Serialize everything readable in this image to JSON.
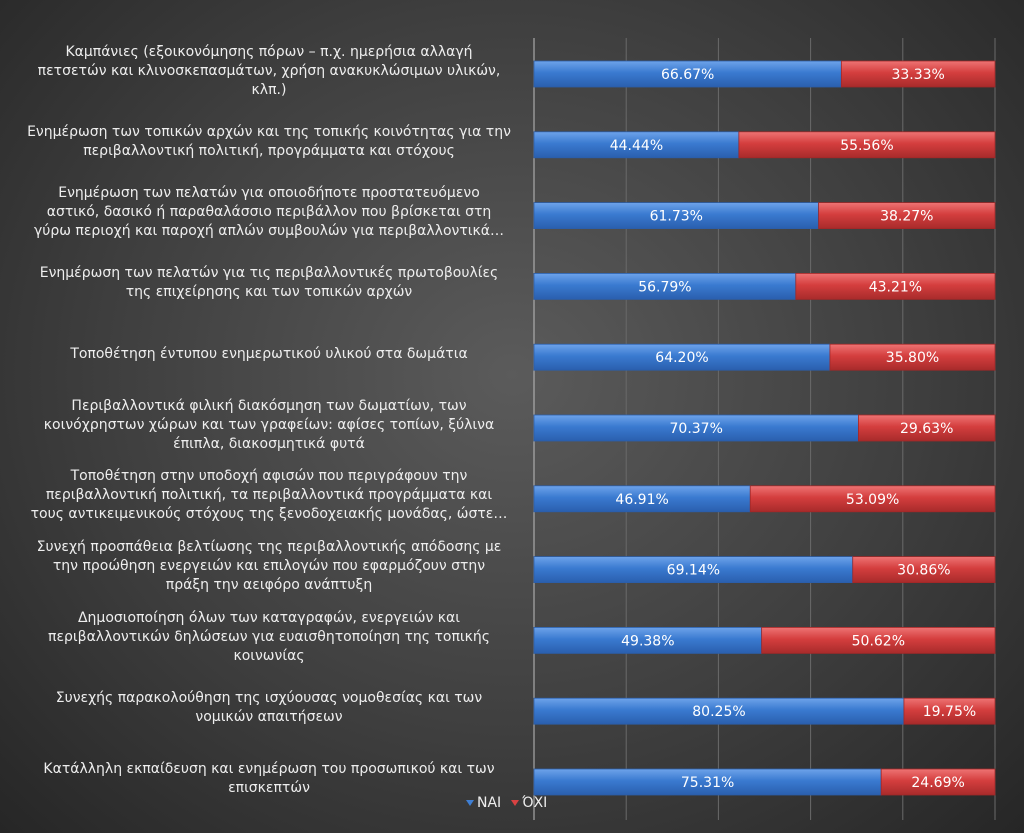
{
  "chart_data": {
    "type": "bar",
    "orientation": "horizontal",
    "stacked": true,
    "xlim": [
      0,
      100
    ],
    "grid": true,
    "legend_position": "bottom",
    "categories": [
      [
        "Καμπάνιες (εξοικονόμησης πόρων – π.χ. ημερήσια αλλαγή",
        "πετσετών και κλινοσκεπασμάτων, χρήση ανακυκλώσιμων υλικών,",
        "κλπ.)"
      ],
      [
        "Ενημέρωση των τοπικών αρχών και της τοπικής κοινότητας για την",
        "περιβαλλοντική πολιτική, προγράμματα και στόχους"
      ],
      [
        "Ενημέρωση των πελατών για οποιοδήποτε προστατευόμενο",
        "αστικό, δασικό ή παραθαλάσσιο περιβάλλον που βρίσκεται στη",
        "γύρω περιοχή και παροχή απλών συμβουλών για περιβαλλοντικά…"
      ],
      [
        "Ενημέρωση των πελατών για τις περιβαλλοντικές πρωτοβουλίες",
        "της επιχείρησης και των τοπικών αρχών"
      ],
      [
        "Τοποθέτηση έντυπου ενημερωτικού υλικού στα δωμάτια"
      ],
      [
        "Περιβαλλοντικά φιλική διακόσμηση των δωματίων, των",
        "κοινόχρηστων χώρων και των γραφείων: αφίσες τοπίων, ξύλινα",
        "έπιπλα, διακοσμητικά φυτά"
      ],
      [
        "Τοποθέτηση στην υποδοχή αφισών που περιγράφουν την",
        "περιβαλλοντική πολιτική, τα περιβαλλοντικά προγράμματα και",
        "τους αντικειμενικούς στόχους της ξενοδοχειακής μονάδας, ώστε…"
      ],
      [
        "Συνεχή προσπάθεια βελτίωσης της περιβαλλοντικής απόδοσης με",
        "την προώθηση ενεργειών και επιλογών που εφαρμόζουν στην",
        "πράξη την αειφόρο ανάπτυξη"
      ],
      [
        "Δημοσιοποίηση όλων των καταγραφών, ενεργειών και",
        "περιβαλλοντικών δηλώσεων για ευαισθητοποίηση της τοπικής",
        "κοινωνίας"
      ],
      [
        "Συνεχής παρακολούθηση της ισχύουσας νομοθεσίας και των",
        "νομικών απαιτήσεων"
      ],
      [
        "Κατάλληλη εκπαίδευση και ενημέρωση του προσωπικού και των",
        "επισκεπτών"
      ]
    ],
    "series": [
      {
        "name": "ΝΑΙ",
        "color": "#3f7fd4",
        "values": [
          66.67,
          44.44,
          61.73,
          56.79,
          64.2,
          70.37,
          46.91,
          69.14,
          49.38,
          80.25,
          75.31
        ],
        "labels": [
          "66.67%",
          "44.44%",
          "61.73%",
          "56.79%",
          "64.20%",
          "70.37%",
          "46.91%",
          "69.14%",
          "49.38%",
          "80.25%",
          "75.31%"
        ]
      },
      {
        "name": "ΌΧΙ",
        "color": "#d84242",
        "values": [
          33.33,
          55.56,
          38.27,
          43.21,
          35.8,
          29.63,
          53.09,
          30.86,
          50.62,
          19.75,
          24.69
        ],
        "labels": [
          "33.33%",
          "55.56%",
          "38.27%",
          "43.21%",
          "35.80%",
          "29.63%",
          "53.09%",
          "30.86%",
          "50.62%",
          "19.75%",
          "24.69%"
        ]
      }
    ]
  }
}
